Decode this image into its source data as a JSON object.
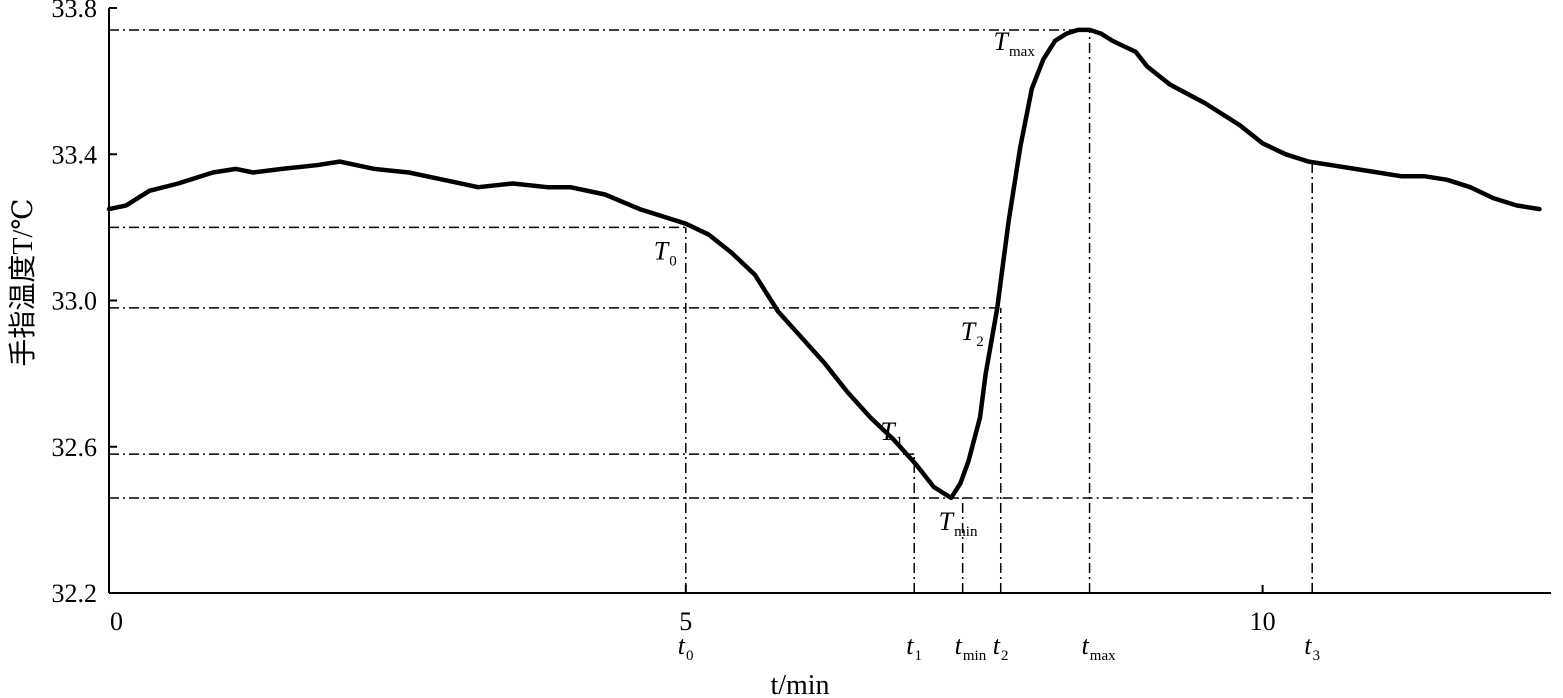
{
  "chart_data": {
    "type": "line",
    "ylabel": "手指温度T/℃",
    "xlabel": "t/min",
    "xlim": [
      0,
      12.5
    ],
    "ylim": [
      32.2,
      33.8
    ],
    "x_ticks": [
      0,
      5,
      10
    ],
    "y_ticks": [
      32.2,
      32.6,
      33.0,
      33.4,
      33.8
    ],
    "x_tick_labels": [
      "0",
      "5",
      "10"
    ],
    "y_tick_labels": [
      "32.2",
      "32.6",
      "33.0",
      "33.4",
      "33.8"
    ],
    "grid": false,
    "series": [
      {
        "x": [
          0,
          0.15,
          0.35,
          0.6,
          0.9,
          1.1,
          1.25,
          1.5,
          1.8,
          2.0,
          2.3,
          2.6,
          2.9,
          3.2,
          3.5,
          3.8,
          4.0,
          4.3,
          4.6,
          4.8,
          5.0,
          5.2,
          5.4,
          5.6,
          5.8,
          6.0,
          6.2,
          6.4,
          6.6,
          6.8,
          7.0,
          7.15,
          7.3,
          7.38,
          7.45,
          7.55,
          7.6,
          7.7,
          7.75,
          7.8,
          7.9,
          8.0,
          8.1,
          8.2,
          8.3,
          8.4,
          8.5,
          8.6,
          8.7,
          8.9,
          9.0,
          9.2,
          9.5,
          9.8,
          10.0,
          10.2,
          10.4,
          10.6,
          10.8,
          11.0,
          11.2,
          11.4,
          11.6,
          11.8,
          12.0,
          12.2,
          12.4
        ],
        "y": [
          33.25,
          33.26,
          33.3,
          33.32,
          33.35,
          33.36,
          33.35,
          33.36,
          33.37,
          33.38,
          33.36,
          33.35,
          33.33,
          33.31,
          33.32,
          33.31,
          33.31,
          33.29,
          33.25,
          33.23,
          33.21,
          33.18,
          33.13,
          33.07,
          32.97,
          32.9,
          32.83,
          32.75,
          32.68,
          32.62,
          32.55,
          32.49,
          32.46,
          32.5,
          32.56,
          32.68,
          32.8,
          32.98,
          33.1,
          33.22,
          33.42,
          33.58,
          33.66,
          33.71,
          33.73,
          33.74,
          33.74,
          33.73,
          33.71,
          33.68,
          33.64,
          33.59,
          33.54,
          33.48,
          33.43,
          33.4,
          33.38,
          33.37,
          33.36,
          33.35,
          33.34,
          33.34,
          33.33,
          33.31,
          33.28,
          33.26,
          33.25
        ]
      }
    ],
    "annotations": [
      {
        "label": "T",
        "sub": "0",
        "x": 5.0,
        "y": 33.2
      },
      {
        "label": "T",
        "sub": "1",
        "x": 6.98,
        "y": 32.58
      },
      {
        "label": "T",
        "sub": "min",
        "x": 7.4,
        "y": 32.46
      },
      {
        "label": "T",
        "sub": "2",
        "x": 7.73,
        "y": 32.98
      },
      {
        "label": "T",
        "sub": "max",
        "x": 8.5,
        "y": 33.74
      }
    ],
    "reference_times": [
      {
        "label": "t",
        "sub": "0",
        "x": 5.0
      },
      {
        "label": "t",
        "sub": "1",
        "x": 6.98
      },
      {
        "label": "t",
        "sub": "min",
        "x": 7.4
      },
      {
        "label": "t",
        "sub": "2",
        "x": 7.73
      },
      {
        "label": "t",
        "sub": "max",
        "x": 8.5
      },
      {
        "label": "t",
        "sub": "3",
        "x": 10.43
      }
    ],
    "t3_y": 33.38
  }
}
